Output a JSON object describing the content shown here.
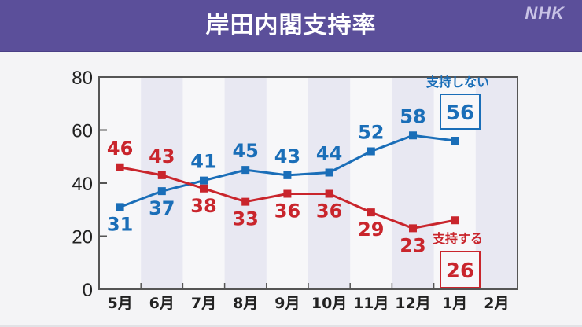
{
  "header": {
    "title": "岸田内閣支持率",
    "logo": "NHK"
  },
  "colors": {
    "header_bg": "#5b4f9a",
    "support": "#c9252c",
    "nonsupport": "#1a6eb8",
    "shade": "#e8e8f2",
    "axis": "#555555"
  },
  "chart_data": {
    "type": "line",
    "title": "岸田内閣支持率",
    "xlabel": "",
    "ylabel": "",
    "ylim": [
      0,
      80
    ],
    "yticks": [
      0,
      20,
      40,
      60,
      80
    ],
    "categories": [
      "5月",
      "6月",
      "7月",
      "8月",
      "9月",
      "10月",
      "11月",
      "12月",
      "1月",
      "2月"
    ],
    "series": [
      {
        "name": "支持しない",
        "color": "#1a6eb8",
        "values": [
          31,
          37,
          41,
          45,
          43,
          44,
          52,
          58,
          56,
          null
        ]
      },
      {
        "name": "支持する",
        "color": "#c9252c",
        "values": [
          46,
          43,
          38,
          33,
          36,
          36,
          29,
          23,
          26,
          null
        ]
      }
    ],
    "highlight": [
      {
        "series": "支持しない",
        "label": "支持しない",
        "value": "56"
      },
      {
        "series": "支持する",
        "label": "支持する",
        "value": "26"
      }
    ],
    "grid": false,
    "shaded_columns": [
      "6月",
      "8月",
      "10月",
      "12月",
      "2月"
    ]
  }
}
